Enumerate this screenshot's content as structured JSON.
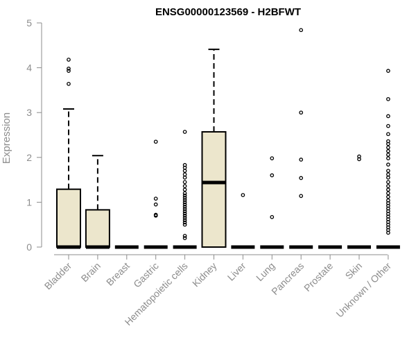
{
  "chart_data": {
    "type": "boxplot",
    "title": "ENSG00000123569 - H2BFWT",
    "ylabel": "Expression",
    "xlabel": "",
    "ylim": [
      0,
      5
    ],
    "yticks": [
      0,
      1,
      2,
      3,
      4,
      5
    ],
    "grid": false,
    "box_color": "#ece6cc",
    "categories": [
      "Bladder",
      "Brain",
      "Breast",
      "Gastric",
      "Hematopoietic cells",
      "Kidney",
      "Liver",
      "Lung",
      "Pancreas",
      "Prostate",
      "Skin",
      "Unknown / Other"
    ],
    "boxes": [
      {
        "q1": 0,
        "median": 0,
        "q3": 1.29,
        "whisker_low": 0,
        "whisker_high": 3.08,
        "outliers": [
          3.64,
          3.93,
          3.98,
          4.18
        ]
      },
      {
        "q1": 0,
        "median": 0,
        "q3": 0.83,
        "whisker_low": 0,
        "whisker_high": 2.04,
        "outliers": []
      },
      {
        "q1": 0,
        "median": 0,
        "q3": 0,
        "whisker_low": 0,
        "whisker_high": 0,
        "outliers": []
      },
      {
        "q1": 0,
        "median": 0,
        "q3": 0,
        "whisker_low": 0,
        "whisker_high": 0,
        "outliers": [
          0.7,
          0.72,
          0.95,
          1.08,
          2.35
        ]
      },
      {
        "q1": 0,
        "median": 0,
        "q3": 0,
        "whisker_low": 0,
        "whisker_high": 0,
        "outliers": [
          0.2,
          0.25,
          0.5,
          0.55,
          0.6,
          0.65,
          0.7,
          0.75,
          0.8,
          0.85,
          0.9,
          0.95,
          1.0,
          1.05,
          1.1,
          1.15,
          1.2,
          1.28,
          1.36,
          1.45,
          1.55,
          1.62,
          1.7,
          1.77,
          1.83,
          2.57
        ]
      },
      {
        "q1": 0,
        "median": 1.44,
        "q3": 2.57,
        "whisker_low": 0,
        "whisker_high": 4.41,
        "outliers": []
      },
      {
        "q1": 0,
        "median": 0,
        "q3": 0,
        "whisker_low": 0,
        "whisker_high": 0,
        "outliers": [
          1.16
        ]
      },
      {
        "q1": 0,
        "median": 0,
        "q3": 0,
        "whisker_low": 0,
        "whisker_high": 0,
        "outliers": [
          0.67,
          1.6,
          1.98
        ]
      },
      {
        "q1": 0,
        "median": 0,
        "q3": 0,
        "whisker_low": 0,
        "whisker_high": 0,
        "outliers": [
          1.14,
          1.54,
          1.95,
          3.0,
          4.84
        ]
      },
      {
        "q1": 0,
        "median": 0,
        "q3": 0,
        "whisker_low": 0,
        "whisker_high": 0,
        "outliers": []
      },
      {
        "q1": 0,
        "median": 0,
        "q3": 0,
        "whisker_low": 0,
        "whisker_high": 0,
        "outliers": [
          1.96,
          2.02
        ]
      },
      {
        "q1": 0,
        "median": 0,
        "q3": 0,
        "whisker_low": 0,
        "whisker_high": 0,
        "outliers": [
          0.32,
          0.38,
          0.44,
          0.5,
          0.56,
          0.62,
          0.68,
          0.74,
          0.8,
          0.86,
          0.92,
          0.98,
          1.04,
          1.12,
          1.2,
          1.28,
          1.36,
          1.45,
          1.55,
          1.62,
          1.7,
          1.84,
          1.98,
          2.06,
          2.14,
          2.22,
          2.3,
          2.36,
          2.52,
          2.7,
          2.92,
          3.3,
          3.93
        ]
      }
    ]
  }
}
